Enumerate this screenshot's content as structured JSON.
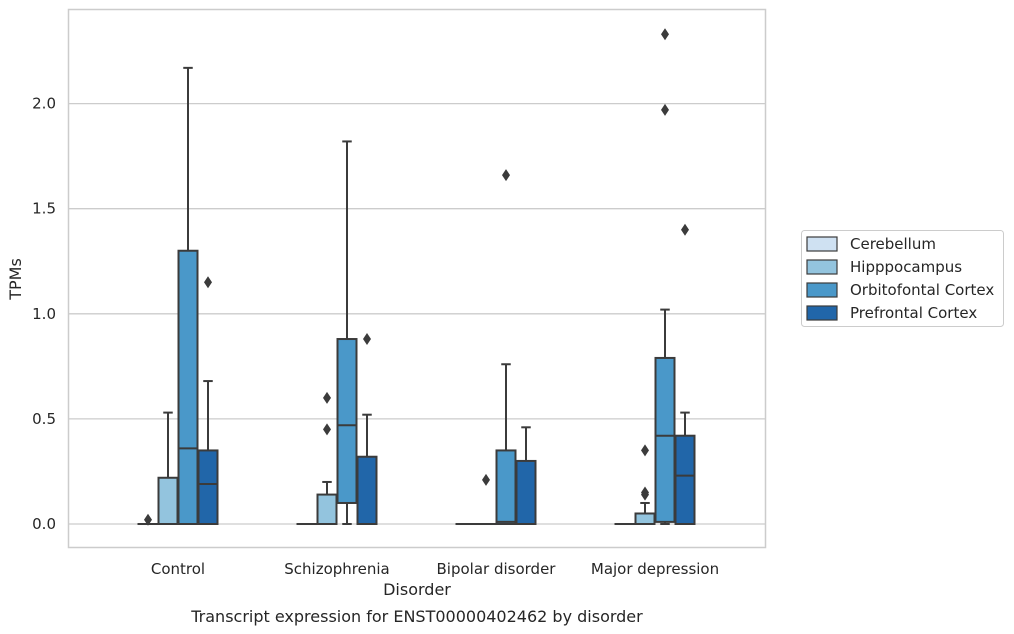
{
  "chart_data": {
    "type": "box",
    "title": "",
    "caption": "Transcript expression for ENST00000402462 by disorder",
    "xlabel": "Disorder",
    "ylabel": "TPMs",
    "ylim": [
      -0.11,
      2.45
    ],
    "yticks": [
      "0.0",
      "0.5",
      "1.0",
      "1.5",
      "2.0"
    ],
    "ytick_values": [
      0.0,
      0.5,
      1.0,
      1.5,
      2.0
    ],
    "grid": true,
    "legend_position": "right",
    "categories": [
      "Control",
      "Schizophrenia",
      "Bipolar disorder",
      "Major depression"
    ],
    "series": [
      {
        "name": "Cerebellum",
        "color": "#cfe1f2",
        "boxes": [
          {
            "q1": 0,
            "median": 0,
            "q3": 0,
            "whisker_low": 0,
            "whisker_high": 0,
            "outliers": [
              0.02
            ]
          },
          {
            "q1": 0,
            "median": 0,
            "q3": 0,
            "whisker_low": 0,
            "whisker_high": 0,
            "outliers": []
          },
          {
            "q1": 0,
            "median": 0,
            "q3": 0,
            "whisker_low": 0,
            "whisker_high": 0,
            "outliers": []
          },
          {
            "q1": 0,
            "median": 0,
            "q3": 0,
            "whisker_low": 0,
            "whisker_high": 0,
            "outliers": []
          }
        ]
      },
      {
        "name": "Hipppocampus",
        "color": "#93c4de",
        "boxes": [
          {
            "q1": 0,
            "median": 0,
            "q3": 0.22,
            "whisker_low": 0,
            "whisker_high": 0.53,
            "outliers": []
          },
          {
            "q1": 0,
            "median": 0,
            "q3": 0.14,
            "whisker_low": 0,
            "whisker_high": 0.2,
            "outliers": [
              0.45,
              0.6
            ]
          },
          {
            "q1": 0,
            "median": 0,
            "q3": 0,
            "whisker_low": 0,
            "whisker_high": 0,
            "outliers": [
              0.21
            ]
          },
          {
            "q1": 0,
            "median": 0,
            "q3": 0.05,
            "whisker_low": 0,
            "whisker_high": 0.1,
            "outliers": [
              0.14,
              0.15,
              0.35
            ]
          }
        ]
      },
      {
        "name": "Orbitofontal Cortex",
        "color": "#4a98c9",
        "boxes": [
          {
            "q1": 0,
            "median": 0.36,
            "q3": 1.3,
            "whisker_low": 0,
            "whisker_high": 2.17,
            "outliers": []
          },
          {
            "q1": 0.1,
            "median": 0.47,
            "q3": 0.88,
            "whisker_low": 0,
            "whisker_high": 1.82,
            "outliers": []
          },
          {
            "q1": 0,
            "median": 0.01,
            "q3": 0.35,
            "whisker_low": 0,
            "whisker_high": 0.76,
            "outliers": [
              1.66
            ]
          },
          {
            "q1": 0.01,
            "median": 0.42,
            "q3": 0.79,
            "whisker_low": 0,
            "whisker_high": 1.02,
            "outliers": [
              1.97,
              2.33
            ]
          }
        ]
      },
      {
        "name": "Prefrontal Cortex",
        "color": "#2166a9",
        "boxes": [
          {
            "q1": 0,
            "median": 0.19,
            "q3": 0.35,
            "whisker_low": 0,
            "whisker_high": 0.68,
            "outliers": [
              1.15
            ]
          },
          {
            "q1": 0,
            "median": 0,
            "q3": 0.32,
            "whisker_low": 0,
            "whisker_high": 0.52,
            "outliers": [
              0.88
            ]
          },
          {
            "q1": 0,
            "median": 0,
            "q3": 0.3,
            "whisker_low": 0,
            "whisker_high": 0.46,
            "outliers": []
          },
          {
            "q1": 0,
            "median": 0.23,
            "q3": 0.42,
            "whisker_low": 0,
            "whisker_high": 0.53,
            "outliers": [
              1.4
            ]
          }
        ]
      }
    ]
  }
}
